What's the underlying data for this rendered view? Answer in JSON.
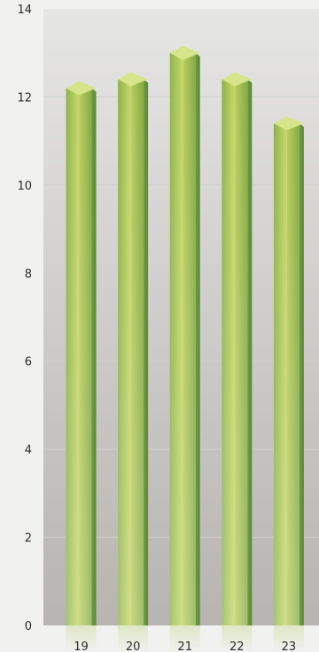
{
  "chart_data": {
    "type": "bar",
    "title": "",
    "xlabel": "",
    "ylabel": "",
    "categories": [
      "19",
      "20",
      "21",
      "22",
      "23"
    ],
    "values": [
      12.2,
      12.4,
      13.0,
      12.4,
      11.4
    ],
    "ylim": [
      0,
      14
    ],
    "y_ticks": [
      "0",
      "2",
      "4",
      "6",
      "8",
      "10",
      "12",
      "14"
    ],
    "grid": true,
    "legend": "none",
    "colors": {
      "bar_light": "#c2d565",
      "bar_mid": "#9bbb4e",
      "bar_dark": "#6f9a41",
      "bar_cap": "#d6e58a",
      "plot_bg_top": "#e6e6e4",
      "plot_bg_bottom": "#b7b4b1",
      "gridline": "#cfcfcd",
      "page_bg": "#f1f1ef"
    }
  }
}
